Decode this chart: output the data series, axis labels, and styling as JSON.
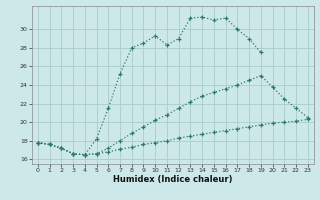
{
  "xlabel": "Humidex (Indice chaleur)",
  "background_color": "#cce8e8",
  "grid_color": "#aacccc",
  "line_color": "#2d7a6a",
  "xlim": [
    -0.5,
    23.5
  ],
  "ylim": [
    15.5,
    32.5
  ],
  "yticks": [
    16,
    18,
    20,
    22,
    24,
    26,
    28,
    30
  ],
  "xticks": [
    0,
    1,
    2,
    3,
    4,
    5,
    6,
    7,
    8,
    9,
    10,
    11,
    12,
    13,
    14,
    15,
    16,
    17,
    18,
    19,
    20,
    21,
    22,
    23
  ],
  "line1_x": [
    0,
    1,
    2,
    3,
    4,
    5,
    6,
    7,
    8,
    9,
    10,
    11,
    12,
    13,
    14,
    15,
    16,
    17,
    18,
    19
  ],
  "line1_y": [
    17.8,
    17.6,
    17.2,
    16.6,
    16.5,
    18.2,
    21.5,
    25.2,
    28.0,
    28.5,
    29.3,
    28.3,
    29.0,
    31.2,
    31.3,
    31.0,
    31.2,
    30.0,
    29.0,
    27.5
  ],
  "line2_x": [
    0,
    1,
    2,
    3,
    4,
    5,
    6,
    7,
    8,
    9,
    10,
    11,
    12,
    13,
    14,
    15,
    16,
    17,
    18,
    19,
    20,
    21,
    22,
    23
  ],
  "line2_y": [
    17.8,
    17.6,
    17.2,
    16.6,
    16.5,
    16.6,
    17.2,
    18.0,
    18.8,
    19.5,
    20.2,
    20.8,
    21.5,
    22.2,
    22.8,
    23.2,
    23.6,
    24.0,
    24.5,
    25.0,
    23.8,
    22.5,
    21.5,
    20.5
  ],
  "line3_x": [
    0,
    1,
    2,
    3,
    4,
    5,
    6,
    7,
    8,
    9,
    10,
    11,
    12,
    13,
    14,
    15,
    16,
    17,
    18,
    19,
    20,
    21,
    22,
    23
  ],
  "line3_y": [
    17.8,
    17.6,
    17.2,
    16.6,
    16.5,
    16.6,
    16.8,
    17.1,
    17.3,
    17.6,
    17.8,
    18.0,
    18.3,
    18.5,
    18.7,
    18.9,
    19.1,
    19.3,
    19.5,
    19.7,
    19.9,
    20.0,
    20.1,
    20.3
  ]
}
